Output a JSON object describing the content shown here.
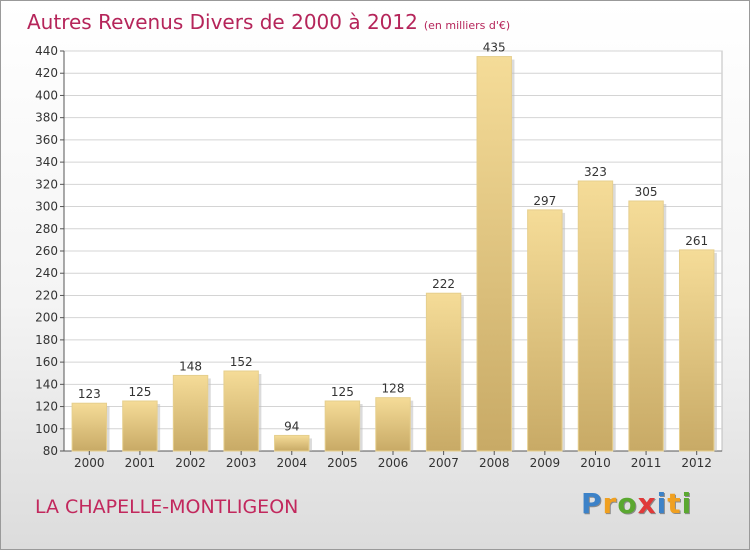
{
  "header": {
    "title": "Autres Revenus Divers de 2000 à 2012",
    "subtitle": "(en milliers d'€)"
  },
  "footer": {
    "location": "LA CHAPELLE-MONTLIGEON",
    "brand_letters": [
      {
        "ch": "P",
        "color": "#3c82c8"
      },
      {
        "ch": "r",
        "color": "#f0a020"
      },
      {
        "ch": "o",
        "color": "#5aa830"
      },
      {
        "ch": "x",
        "color": "#e03a3a"
      },
      {
        "ch": "i",
        "color": "#3c82c8"
      },
      {
        "ch": "t",
        "color": "#f0a020"
      },
      {
        "ch": "i",
        "color": "#5aa830"
      }
    ]
  },
  "chart_data": {
    "type": "bar",
    "title": "Autres Revenus Divers de 2000 à 2012",
    "subtitle": "(en milliers d'€)",
    "categories": [
      "2000",
      "2001",
      "2002",
      "2003",
      "2004",
      "2005",
      "2006",
      "2007",
      "2008",
      "2009",
      "2010",
      "2011",
      "2012"
    ],
    "values": [
      123,
      125,
      148,
      152,
      94,
      125,
      128,
      222,
      435,
      297,
      323,
      305,
      261
    ],
    "ylim": [
      80,
      440
    ],
    "yticks": [
      80,
      100,
      120,
      140,
      160,
      180,
      200,
      220,
      240,
      260,
      280,
      300,
      320,
      340,
      360,
      380,
      400,
      420,
      440
    ],
    "grid": true,
    "bar_color_light": "#f5dc98",
    "bar_color_dark": "#c8aa66",
    "grid_color": "#d4d4d4"
  }
}
